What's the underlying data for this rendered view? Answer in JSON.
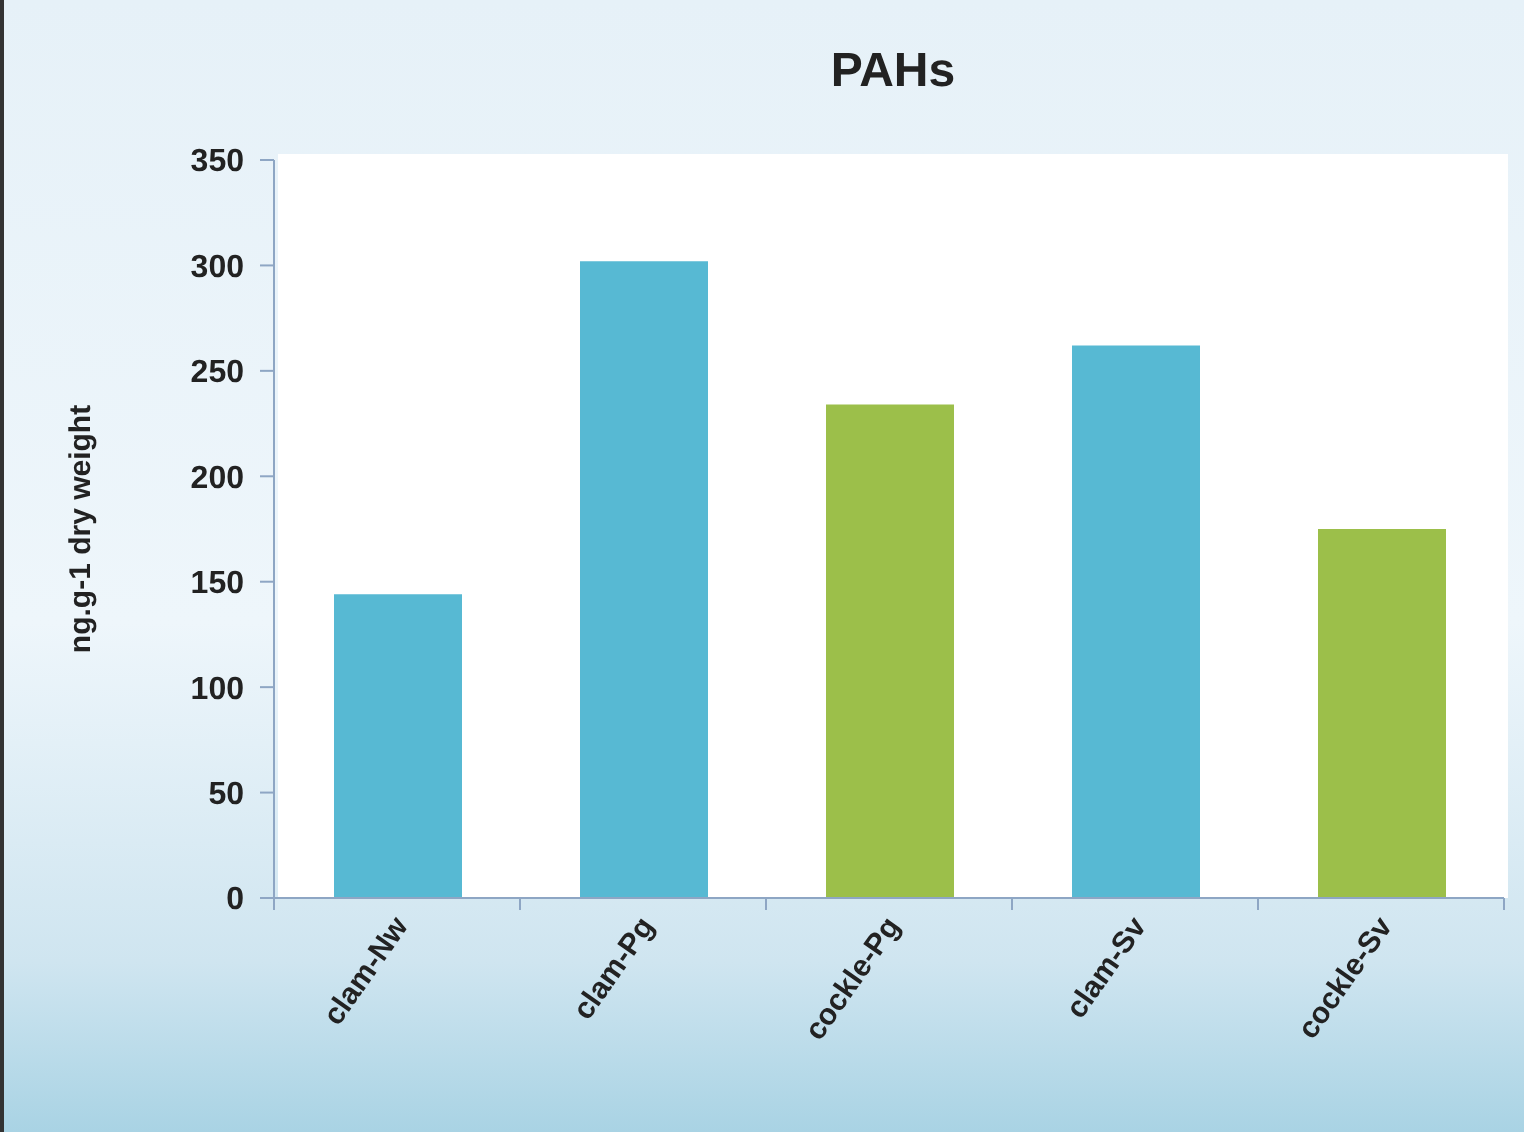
{
  "chart_data": {
    "type": "bar",
    "title": "PAHs",
    "ylabel": "ng.g-1 dry weight",
    "categories": [
      "clam-Nw",
      "clam-Pg",
      "cockle-Pg",
      "clam-Sv",
      "cockle-Sv"
    ],
    "values": [
      144,
      302,
      234,
      262,
      175
    ],
    "colors": [
      "#57b9d3",
      "#57b9d3",
      "#9cbf4a",
      "#57b9d3",
      "#9cbf4a"
    ],
    "ylim": [
      0,
      350
    ],
    "yticks": [
      0,
      50,
      100,
      150,
      200,
      250,
      300,
      350
    ]
  }
}
